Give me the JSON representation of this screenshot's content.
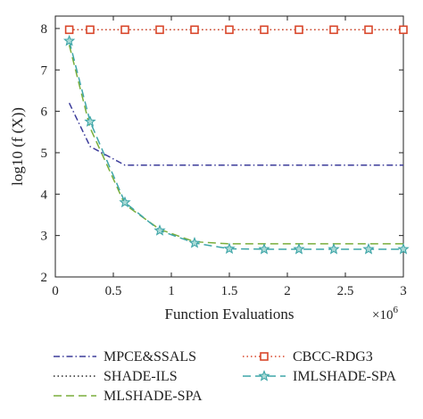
{
  "chart_data": {
    "type": "line",
    "title": "",
    "xlabel": "Function Evaluations",
    "ylabel": "log10 (f (X))",
    "x_multiplier": "×10",
    "x_multiplier_exp": "6",
    "xlim": [
      0,
      3
    ],
    "ylim": [
      2,
      8.3
    ],
    "xticks": [
      "0",
      "0.5",
      "1",
      "1.5",
      "2",
      "2.5",
      "3"
    ],
    "yticks": [
      "2",
      "3",
      "4",
      "5",
      "6",
      "7",
      "8"
    ],
    "xtick_values": [
      0,
      0.5,
      1,
      1.5,
      2,
      2.5,
      3
    ],
    "ytick_values": [
      2,
      3,
      4,
      5,
      6,
      7,
      8
    ],
    "grid": false,
    "legend_position": "below",
    "series": [
      {
        "name": "MPCE&SSALS",
        "color": "#3b3b9a",
        "style": "dashdot",
        "marker": "none",
        "x": [
          0.12,
          0.3,
          0.6,
          0.9,
          1.2,
          1.5,
          1.8,
          2.1,
          2.4,
          2.7,
          3.0
        ],
        "y": [
          6.2,
          5.15,
          4.7,
          4.7,
          4.7,
          4.7,
          4.7,
          4.7,
          4.7,
          4.7,
          4.7
        ]
      },
      {
        "name": "CBCC-RDG3",
        "color": "#d9472b",
        "style": "dotted",
        "marker": "square",
        "x": [
          0.12,
          0.3,
          0.6,
          0.9,
          1.2,
          1.5,
          1.8,
          2.1,
          2.4,
          2.7,
          3.0
        ],
        "y": [
          7.97,
          7.97,
          7.97,
          7.97,
          7.97,
          7.97,
          7.97,
          7.97,
          7.97,
          7.97,
          7.97
        ]
      },
      {
        "name": "SHADE-ILS",
        "color": "#2a2a2a",
        "style": "dotted",
        "marker": "none",
        "x": [
          0.12,
          0.3,
          0.6,
          0.9,
          1.2,
          1.5,
          1.8,
          2.1,
          2.4,
          2.7,
          3.0
        ],
        "y": [
          7.97,
          7.97,
          7.97,
          7.97,
          7.97,
          7.97,
          7.97,
          7.97,
          7.97,
          7.97,
          7.97
        ]
      },
      {
        "name": "IMLSHADE-SPA",
        "color": "#3fa6a8",
        "style": "dashed",
        "marker": "star",
        "x": [
          0.12,
          0.3,
          0.6,
          0.9,
          1.2,
          1.5,
          1.8,
          2.1,
          2.4,
          2.7,
          3.0
        ],
        "y": [
          7.7,
          5.75,
          3.8,
          3.12,
          2.82,
          2.68,
          2.67,
          2.67,
          2.67,
          2.67,
          2.67
        ]
      },
      {
        "name": "MLSHADE-SPA",
        "color": "#7aae3c",
        "style": "dashed",
        "marker": "none",
        "x": [
          0.12,
          0.3,
          0.6,
          0.9,
          1.2,
          1.5,
          1.8,
          2.1,
          2.4,
          2.7,
          3.0
        ],
        "y": [
          7.6,
          5.6,
          3.75,
          3.15,
          2.85,
          2.8,
          2.8,
          2.8,
          2.8,
          2.8,
          2.8
        ]
      }
    ],
    "legend": [
      {
        "name": "MPCE&SSALS",
        "series": 0
      },
      {
        "name": "CBCC-RDG3",
        "series": 1
      },
      {
        "name": "SHADE-ILS",
        "series": 2
      },
      {
        "name": "IMLSHADE-SPA",
        "series": 3
      },
      {
        "name": "MLSHADE-SPA",
        "series": 4
      }
    ]
  }
}
